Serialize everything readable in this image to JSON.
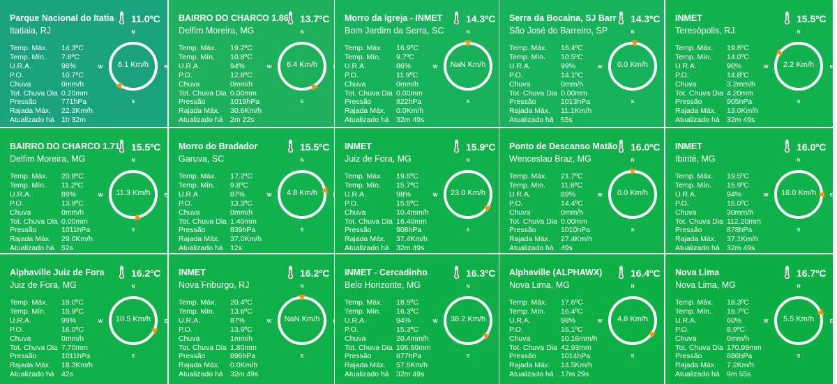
{
  "units": {
    "temp_unit": "ºC"
  },
  "compass_labels": {
    "n": "N",
    "s": "S",
    "e": "E",
    "w": "W"
  },
  "stat_labels": [
    "Temp. Máx.",
    "Temp. Mín.",
    "U.R.A.",
    "P.O.",
    "Chuva",
    "Tot. Chuva Dia",
    "Pressão",
    "Rajada Máx.",
    "Atualizado há"
  ],
  "stations": [
    {
      "title": "Parque Nacional do Itatia",
      "location": "Itatiaia, RJ",
      "temp": "11.0ºC",
      "color": "#1aa37e",
      "wind_speed": "6.1 Km/h",
      "wind_dir_deg": 215,
      "values": [
        "14.3ºC",
        "7.8ºC",
        "98%",
        "10.7ºC",
        "0mm/h",
        "0.20mm",
        "771hPa",
        "22.3Km/h",
        "1h 32m"
      ]
    },
    {
      "title": "BAIRRO DO CHARCO 1.86",
      "location": "Delfim Moreira, MG",
      "temp": "13.7ºC",
      "color": "#1fb05c",
      "wind_speed": "6.4 Km/h",
      "wind_dir_deg": 150,
      "values": [
        "19.2ºC",
        "10.8ºC",
        "94%",
        "12.8ºC",
        "0mm/h",
        "0.00mm",
        "1019hPa",
        "30.6Km/h",
        "2m 22s"
      ]
    },
    {
      "title": "Morro da Igreja - INMET",
      "location": "Bom Jardim da Serra, SC",
      "temp": "14.3ºC",
      "color": "#17b25a",
      "wind_speed": "NaN Km/h",
      "wind_dir_deg": 0,
      "values": [
        "16.9ºC",
        "9.7ºC",
        "86%",
        "11.9ºC",
        "0mm/h",
        "0.00mm",
        "822hPa",
        "0.0Km/h",
        "32m 49s"
      ]
    },
    {
      "title": "Serra da Bocaina, SJ Barr",
      "location": "São José do Barreiro, SP",
      "temp": "14.3ºC",
      "color": "#17b25a",
      "wind_speed": "0.0 Km/h",
      "wind_dir_deg": 5,
      "values": [
        "16.4ºC",
        "10.5ºC",
        "99%",
        "14.1ºC",
        "0mm/h",
        "0.00mm",
        "1013hPa",
        "11.1Km/h",
        "55s"
      ]
    },
    {
      "title": "INMET",
      "location": "Teresópolis, RJ",
      "temp": "15.5ºC",
      "color": "#14b151",
      "wind_speed": "2.2 Km/h",
      "wind_dir_deg": 305,
      "values": [
        "19.8ºC",
        "14.0ºC",
        "96%",
        "14.8ºC",
        "3.2mm/h",
        "4.20mm",
        "905hPa",
        "13.0Km/h",
        "32m 49s"
      ]
    },
    {
      "title": "BAIRRO DO CHARCO 1.71",
      "location": "Delfim Moreira, MG",
      "temp": "15.5ºC",
      "color": "#14b151",
      "wind_speed": "11.3 Km/h",
      "wind_dir_deg": 170,
      "values": [
        "20.8ºC",
        "11.2ºC",
        "89%",
        "13.9ºC",
        "0mm/h",
        "0.00mm",
        "1011hPa",
        "29.0Km/h",
        "52s"
      ]
    },
    {
      "title": "Morro do Bradador",
      "location": "Garuva, SC",
      "temp": "15.5ºC",
      "color": "#14b151",
      "wind_speed": "4.8 Km/h",
      "wind_dir_deg": 80,
      "values": [
        "17.2ºC",
        "9.8ºC",
        "87%",
        "13.3ºC",
        "0mm/h",
        "1.40mm",
        "839hPa",
        "37.0Km/h",
        "12s"
      ]
    },
    {
      "title": "INMET",
      "location": "Juiz de Fora, MG",
      "temp": "15.9ºC",
      "color": "#12b04d",
      "wind_speed": "23.0 Km/h",
      "wind_dir_deg": 125,
      "values": [
        "19.6ºC",
        "15.7ºC",
        "98%",
        "15.5ºC",
        "10.4mm/h",
        "16.40mm",
        "908hPa",
        "37.4Km/h",
        "32m 49s"
      ]
    },
    {
      "title": "Ponto de Descanso Matão -",
      "location": "Wenceslau Braz, MG",
      "temp": "16.0ºC",
      "color": "#11b04b",
      "wind_speed": "0.0 Km/h",
      "wind_dir_deg": 0,
      "values": [
        "21.7ºC",
        "11.6ºC",
        "89%",
        "14.4ºC",
        "0mm/h",
        "0.00mm",
        "1010hPa",
        "27.4Km/h",
        "49s"
      ]
    },
    {
      "title": "INMET",
      "location": "Ibirité, MG",
      "temp": "16.0ºC",
      "color": "#11b04b",
      "wind_speed": "18.0 Km/h",
      "wind_dir_deg": 90,
      "values": [
        "19.5ºC",
        "15.9ºC",
        "94%",
        "15.0ºC",
        "30mm/h",
        "112.20mm",
        "878hPa",
        "37.1Km/h",
        "32m 49s"
      ]
    },
    {
      "title": "Alphaville Juiz de Fora",
      "location": "Juiz de Fora, MG",
      "temp": "16.2ºC",
      "color": "#10af48",
      "wind_speed": "10.5 Km/h",
      "wind_dir_deg": 115,
      "values": [
        "19.0ºC",
        "15.9ºC",
        "99%",
        "16.0ºC",
        "0mm/h",
        "7.70mm",
        "1011hPa",
        "18.3Km/h",
        "42s"
      ]
    },
    {
      "title": "INMET",
      "location": "Nova Friburgo, RJ",
      "temp": "16.2ºC",
      "color": "#10af48",
      "wind_speed": "NaN Km/h",
      "wind_dir_deg": 0,
      "values": [
        "20.4ºC",
        "13.6ºC",
        "87%",
        "13.9ºC",
        "1mm/h",
        "1.80mm",
        "896hPa",
        "0.0Km/h",
        "32m 49s"
      ]
    },
    {
      "title": "INMET - Cercadinho",
      "location": "Belo Horizonte, MG",
      "temp": "16.3ºC",
      "color": "#0faf47",
      "wind_speed": "38.2 Km/h",
      "wind_dir_deg": 130,
      "values": [
        "18.5ºC",
        "16.3ºC",
        "94%",
        "15.3ºC",
        "20.4mm/h",
        "106.60mm",
        "877hPa",
        "57.6Km/h",
        "32m 49s"
      ]
    },
    {
      "title": "Alphaville (ALPHAWX)",
      "location": "Nova Lima, MG",
      "temp": "16.4ºC",
      "color": "#0eaf45",
      "wind_speed": "4.8 Km/h",
      "wind_dir_deg": 125,
      "values": [
        "17.6ºC",
        "16.4ºC",
        "98%",
        "16.1ºC",
        "10.16mm/h",
        "42.93mm",
        "1014hPa",
        "14.5Km/h",
        "17m 29s"
      ]
    },
    {
      "title": "Nova Lima",
      "location": "Nova Lima, MG",
      "temp": "16.7ºC",
      "color": "#0dae43",
      "wind_speed": "5.5 Km/h",
      "wind_dir_deg": 70,
      "values": [
        "18.3ºC",
        "16.7ºC",
        "60%",
        "8.9ºC",
        "0mm/h",
        "170.99mm",
        "886hPa",
        "7.2Km/h",
        "9m 55s"
      ]
    }
  ]
}
